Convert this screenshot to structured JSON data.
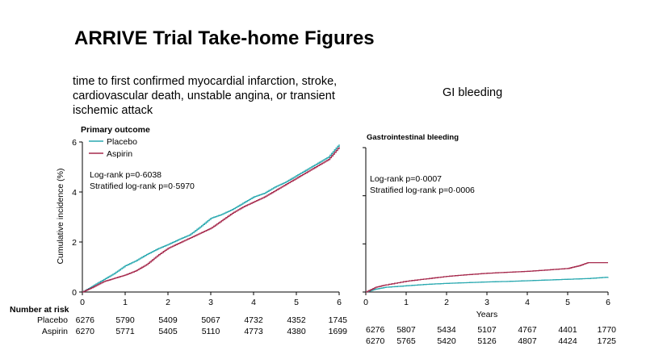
{
  "slide": {
    "title": "ARRIVE Trial Take-home Figures",
    "subtitle_left": "time to first confirmed myocardial infarction, stroke, cardiovascular death, unstable angina, or transient ischemic attack",
    "subtitle_right": "GI bleeding"
  },
  "colors": {
    "placebo": "#2aa9b0",
    "aspirin": "#a62a4d",
    "axis": "#000000"
  },
  "chart_data": [
    {
      "type": "line",
      "title": "Primary outcome",
      "xlabel": "",
      "ylabel": "Cumulative incidence (%)",
      "xlim": [
        0,
        6
      ],
      "ylim": [
        0,
        6
      ],
      "xticks": [
        "0",
        "1",
        "2",
        "3",
        "4",
        "5",
        "6"
      ],
      "yticks": [
        "0",
        "2",
        "4",
        "6"
      ],
      "legend": {
        "position": "top-left",
        "entries": [
          "Placebo",
          "Aspirin"
        ]
      },
      "annotations": [
        "Log-rank p=0·6038",
        "Stratified log-rank p=0·5970"
      ],
      "series": [
        {
          "name": "Placebo",
          "color": "#2aa9b0",
          "x": [
            0,
            0.25,
            0.5,
            0.75,
            1,
            1.25,
            1.5,
            1.75,
            2,
            2.25,
            2.5,
            2.75,
            3,
            3.25,
            3.5,
            3.75,
            4,
            4.25,
            4.5,
            4.75,
            5,
            5.25,
            5.5,
            5.75,
            6
          ],
          "y": [
            0,
            0.25,
            0.5,
            0.75,
            1.05,
            1.25,
            1.5,
            1.72,
            1.9,
            2.1,
            2.28,
            2.6,
            2.95,
            3.1,
            3.3,
            3.55,
            3.8,
            3.95,
            4.2,
            4.4,
            4.65,
            4.9,
            5.15,
            5.4,
            5.9
          ]
        },
        {
          "name": "Aspirin",
          "color": "#a62a4d",
          "x": [
            0,
            0.25,
            0.5,
            0.75,
            1,
            1.25,
            1.5,
            1.75,
            2,
            2.25,
            2.5,
            2.75,
            3,
            3.25,
            3.5,
            3.75,
            4,
            4.25,
            4.5,
            4.75,
            5,
            5.25,
            5.5,
            5.75,
            6
          ],
          "y": [
            0,
            0.2,
            0.42,
            0.55,
            0.68,
            0.85,
            1.1,
            1.45,
            1.75,
            1.95,
            2.15,
            2.35,
            2.55,
            2.85,
            3.15,
            3.4,
            3.6,
            3.8,
            4.05,
            4.3,
            4.55,
            4.8,
            5.05,
            5.3,
            5.8
          ]
        }
      ],
      "number_at_risk": {
        "title": "Number at risk",
        "rows": [
          {
            "label": "Placebo",
            "values": [
              "6276",
              "5790",
              "5409",
              "5067",
              "4732",
              "4352",
              "1745"
            ]
          },
          {
            "label": "Aspirin",
            "values": [
              "6270",
              "5771",
              "5405",
              "5110",
              "4773",
              "4380",
              "1699"
            ]
          }
        ]
      }
    },
    {
      "type": "line",
      "title": "Gastrointestinal bleeding",
      "xlabel": "Years",
      "ylabel": "",
      "xlim": [
        0,
        6
      ],
      "ylim": [
        0,
        6
      ],
      "xticks": [
        "0",
        "1",
        "2",
        "3",
        "4",
        "5",
        "6"
      ],
      "yticks": [],
      "annotations": [
        "Log-rank p=0·0007",
        "Stratified log-rank p=0·0006"
      ],
      "series": [
        {
          "name": "Placebo",
          "color": "#2aa9b0",
          "x": [
            0,
            0.25,
            0.5,
            1,
            1.5,
            2,
            2.5,
            3,
            3.5,
            4,
            4.5,
            5,
            5.5,
            6
          ],
          "y": [
            0,
            0.12,
            0.2,
            0.26,
            0.32,
            0.36,
            0.39,
            0.42,
            0.44,
            0.47,
            0.5,
            0.53,
            0.56,
            0.62
          ]
        },
        {
          "name": "Aspirin",
          "color": "#a62a4d",
          "x": [
            0,
            0.25,
            0.5,
            1,
            1.5,
            2,
            2.5,
            3,
            3.5,
            4,
            4.5,
            5,
            5.3,
            5.5,
            6
          ],
          "y": [
            0,
            0.2,
            0.3,
            0.45,
            0.55,
            0.65,
            0.72,
            0.78,
            0.82,
            0.86,
            0.92,
            0.98,
            1.1,
            1.22,
            1.22
          ]
        }
      ],
      "number_at_risk": {
        "title": "",
        "rows": [
          {
            "label": "",
            "values": [
              "6276",
              "5807",
              "5434",
              "5107",
              "4767",
              "4401",
              "1770"
            ]
          },
          {
            "label": "",
            "values": [
              "6270",
              "5765",
              "5420",
              "5126",
              "4807",
              "4424",
              "1725"
            ]
          }
        ]
      }
    }
  ]
}
